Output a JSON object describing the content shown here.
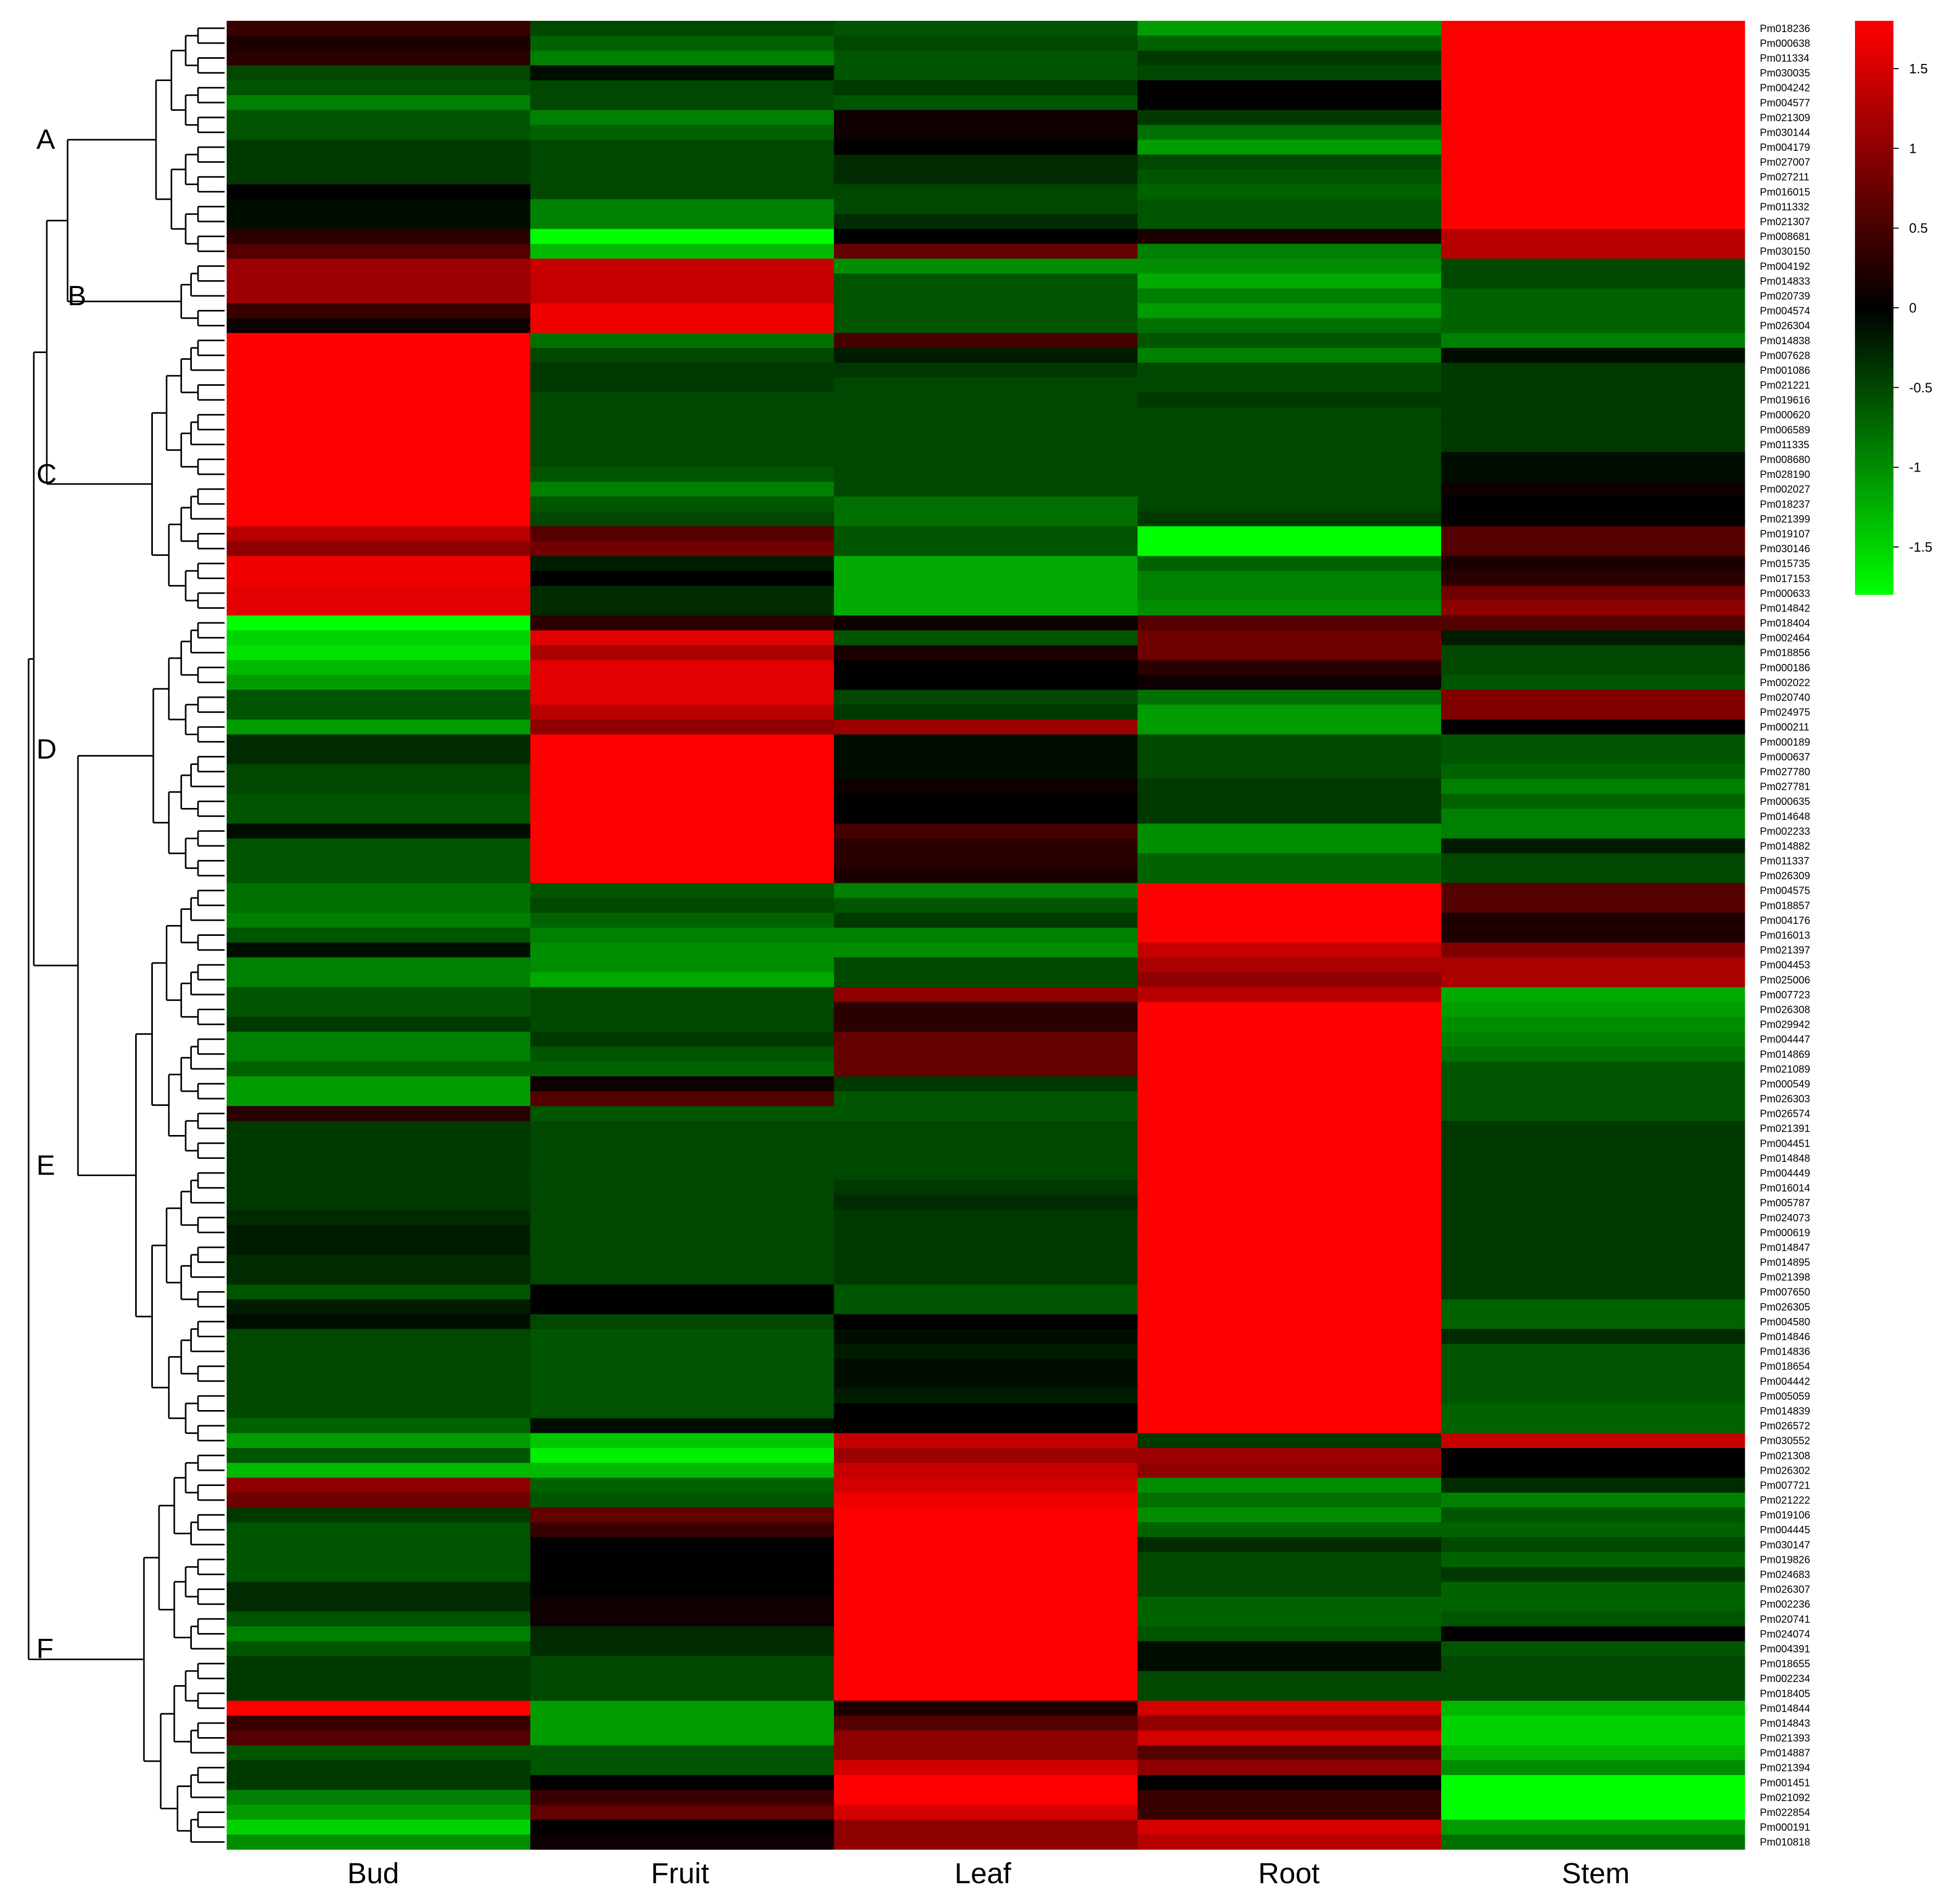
{
  "chart_data": {
    "type": "heatmap",
    "title": "",
    "columns": [
      "Bud",
      "Fruit",
      "Leaf",
      "Root",
      "Stem"
    ],
    "colorbar": {
      "min": -1.8,
      "max": 1.8,
      "ticks": [
        1.5,
        1,
        0.5,
        0,
        -0.5,
        -1,
        -1.5
      ],
      "low_color": "#00ff00",
      "mid_color": "#000000",
      "high_color": "#ff0000"
    },
    "clusters": [
      {
        "label": "A",
        "start": 0,
        "end": 15
      },
      {
        "label": "B",
        "start": 16,
        "end": 20
      },
      {
        "label": "C",
        "start": 21,
        "end": 39
      },
      {
        "label": "D",
        "start": 40,
        "end": 57
      },
      {
        "label": "E",
        "start": 58,
        "end": 95
      },
      {
        "label": "F",
        "start": 96,
        "end": 122
      }
    ],
    "rows": [
      {
        "gene": "Pm018236",
        "values": [
          0.4,
          -0.5,
          -0.6,
          -1.1,
          1.8
        ]
      },
      {
        "gene": "Pm000638",
        "values": [
          0.2,
          -0.7,
          -0.5,
          -0.7,
          1.8
        ]
      },
      {
        "gene": "Pm011334",
        "values": [
          0.3,
          -0.9,
          -0.6,
          -0.4,
          1.8
        ]
      },
      {
        "gene": "Pm030035",
        "values": [
          -0.5,
          -0.1,
          -0.6,
          -0.5,
          1.8
        ]
      },
      {
        "gene": "Pm004242",
        "values": [
          -0.6,
          -0.5,
          -0.4,
          0.0,
          1.8
        ]
      },
      {
        "gene": "Pm004577",
        "values": [
          -0.9,
          -0.5,
          -0.6,
          0.0,
          1.8
        ]
      },
      {
        "gene": "Pm021309",
        "values": [
          -0.6,
          -0.9,
          0.1,
          -0.4,
          1.8
        ]
      },
      {
        "gene": "Pm030144",
        "values": [
          -0.6,
          -0.7,
          0.1,
          -0.8,
          1.8
        ]
      },
      {
        "gene": "Pm004179",
        "values": [
          -0.4,
          -0.5,
          0.0,
          -1.1,
          1.8
        ]
      },
      {
        "gene": "Pm027007",
        "values": [
          -0.4,
          -0.5,
          -0.3,
          -0.5,
          1.8
        ]
      },
      {
        "gene": "Pm027211",
        "values": [
          -0.4,
          -0.5,
          -0.3,
          -0.6,
          1.8
        ]
      },
      {
        "gene": "Pm016015",
        "values": [
          0.0,
          -0.5,
          -0.5,
          -0.7,
          1.8
        ]
      },
      {
        "gene": "Pm011332",
        "values": [
          -0.1,
          -0.9,
          -0.5,
          -0.6,
          1.8
        ]
      },
      {
        "gene": "Pm021307",
        "values": [
          -0.1,
          -0.9,
          -0.3,
          -0.6,
          1.8
        ]
      },
      {
        "gene": "Pm008681",
        "values": [
          0.3,
          -1.8,
          0.0,
          0.2,
          1.3
        ]
      },
      {
        "gene": "Pm030150",
        "values": [
          0.6,
          -1.3,
          0.7,
          -0.9,
          1.3
        ]
      },
      {
        "gene": "Pm004192",
        "values": [
          1.1,
          1.4,
          -1.0,
          -1.0,
          -0.5
        ]
      },
      {
        "gene": "Pm014833",
        "values": [
          1.1,
          1.4,
          -0.6,
          -1.2,
          -0.5
        ]
      },
      {
        "gene": "Pm020739",
        "values": [
          1.1,
          1.4,
          -0.6,
          -0.9,
          -0.7
        ]
      },
      {
        "gene": "Pm004574",
        "values": [
          0.4,
          1.7,
          -0.6,
          -1.1,
          -0.7
        ]
      },
      {
        "gene": "Pm026304",
        "values": [
          0.1,
          1.7,
          -0.6,
          -0.8,
          -0.7
        ]
      },
      {
        "gene": "Pm014838",
        "values": [
          1.8,
          -0.8,
          0.5,
          -0.6,
          -0.9
        ]
      },
      {
        "gene": "Pm007628",
        "values": [
          1.8,
          -0.5,
          -0.2,
          -0.9,
          -0.1
        ]
      },
      {
        "gene": "Pm001086",
        "values": [
          1.8,
          -0.4,
          -0.4,
          -0.5,
          -0.4
        ]
      },
      {
        "gene": "Pm021221",
        "values": [
          1.8,
          -0.4,
          -0.5,
          -0.5,
          -0.4
        ]
      },
      {
        "gene": "Pm019616",
        "values": [
          1.8,
          -0.5,
          -0.5,
          -0.4,
          -0.4
        ]
      },
      {
        "gene": "Pm000620",
        "values": [
          1.8,
          -0.5,
          -0.5,
          -0.5,
          -0.4
        ]
      },
      {
        "gene": "Pm006589",
        "values": [
          1.8,
          -0.5,
          -0.5,
          -0.5,
          -0.4
        ]
      },
      {
        "gene": "Pm011335",
        "values": [
          1.8,
          -0.5,
          -0.5,
          -0.5,
          -0.4
        ]
      },
      {
        "gene": "Pm008680",
        "values": [
          1.8,
          -0.5,
          -0.5,
          -0.5,
          -0.1
        ]
      },
      {
        "gene": "Pm028190",
        "values": [
          1.8,
          -0.6,
          -0.5,
          -0.5,
          -0.1
        ]
      },
      {
        "gene": "Pm002027",
        "values": [
          1.8,
          -0.9,
          -0.5,
          -0.5,
          0.1
        ]
      },
      {
        "gene": "Pm018237",
        "values": [
          1.8,
          -0.6,
          -0.8,
          -0.5,
          0.0
        ]
      },
      {
        "gene": "Pm021399",
        "values": [
          1.8,
          -0.5,
          -0.8,
          -0.4,
          0.0
        ]
      },
      {
        "gene": "Pm019107",
        "values": [
          1.3,
          0.6,
          -0.6,
          -1.8,
          0.6
        ]
      },
      {
        "gene": "Pm030146",
        "values": [
          1.0,
          0.8,
          -0.6,
          -1.8,
          0.6
        ]
      },
      {
        "gene": "Pm015735",
        "values": [
          1.7,
          -0.2,
          -1.2,
          -0.7,
          0.2
        ]
      },
      {
        "gene": "Pm017153",
        "values": [
          1.7,
          0.0,
          -1.2,
          -0.9,
          0.3
        ]
      },
      {
        "gene": "Pm000633",
        "values": [
          1.6,
          -0.3,
          -1.2,
          -0.9,
          0.8
        ]
      },
      {
        "gene": "Pm014842",
        "values": [
          1.6,
          -0.3,
          -1.2,
          -1.0,
          1.0
        ]
      },
      {
        "gene": "Pm018404",
        "values": [
          -1.8,
          0.3,
          0.1,
          0.6,
          0.6
        ]
      },
      {
        "gene": "Pm002464",
        "values": [
          -1.5,
          1.6,
          -0.6,
          0.8,
          -0.2
        ]
      },
      {
        "gene": "Pm018856",
        "values": [
          -1.6,
          1.2,
          0.2,
          0.8,
          -0.5
        ]
      },
      {
        "gene": "Pm000186",
        "values": [
          -1.3,
          1.6,
          0.0,
          0.3,
          -0.5
        ]
      },
      {
        "gene": "Pm002022",
        "values": [
          -1.1,
          1.6,
          0.0,
          0.1,
          -0.6
        ]
      },
      {
        "gene": "Pm020740",
        "values": [
          -0.6,
          1.6,
          -0.5,
          -0.8,
          0.9
        ]
      },
      {
        "gene": "Pm024975",
        "values": [
          -0.6,
          1.3,
          -0.4,
          -1.1,
          0.9
        ]
      },
      {
        "gene": "Pm000211",
        "values": [
          -1.1,
          1.0,
          1.1,
          -1.1,
          0.0
        ]
      },
      {
        "gene": "Pm000189",
        "values": [
          -0.3,
          1.8,
          -0.1,
          -0.5,
          -0.6
        ]
      },
      {
        "gene": "Pm000637",
        "values": [
          -0.3,
          1.8,
          -0.1,
          -0.5,
          -0.6
        ]
      },
      {
        "gene": "Pm027780",
        "values": [
          -0.5,
          1.8,
          -0.1,
          -0.5,
          -0.7
        ]
      },
      {
        "gene": "Pm027781",
        "values": [
          -0.5,
          1.8,
          0.1,
          -0.4,
          -0.9
        ]
      },
      {
        "gene": "Pm000635",
        "values": [
          -0.6,
          1.8,
          0.0,
          -0.4,
          -0.7
        ]
      },
      {
        "gene": "Pm014648",
        "values": [
          -0.6,
          1.8,
          0.0,
          -0.4,
          -0.9
        ]
      },
      {
        "gene": "Pm002233",
        "values": [
          -0.1,
          1.8,
          0.5,
          -1.0,
          -0.9
        ]
      },
      {
        "gene": "Pm014882",
        "values": [
          -0.6,
          1.8,
          0.3,
          -1.0,
          -0.2
        ]
      },
      {
        "gene": "Pm011337",
        "values": [
          -0.6,
          1.8,
          0.3,
          -0.7,
          -0.5
        ]
      },
      {
        "gene": "Pm026309",
        "values": [
          -0.6,
          1.8,
          0.2,
          -0.7,
          -0.5
        ]
      },
      {
        "gene": "Pm004575",
        "values": [
          -0.8,
          -0.6,
          -0.9,
          1.8,
          0.6
        ]
      },
      {
        "gene": "Pm018857",
        "values": [
          -0.8,
          -0.5,
          -0.6,
          1.8,
          0.6
        ]
      },
      {
        "gene": "Pm004176",
        "values": [
          -0.9,
          -0.7,
          -0.4,
          1.8,
          0.2
        ]
      },
      {
        "gene": "Pm016013",
        "values": [
          -0.6,
          -0.9,
          -0.9,
          1.8,
          0.2
        ]
      },
      {
        "gene": "Pm021397",
        "values": [
          -0.1,
          -1.0,
          -1.0,
          1.4,
          0.9
        ]
      },
      {
        "gene": "Pm004453",
        "values": [
          -0.9,
          -1.0,
          -0.5,
          1.2,
          1.2
        ]
      },
      {
        "gene": "Pm025006",
        "values": [
          -0.9,
          -1.2,
          -0.5,
          1.0,
          1.2
        ]
      },
      {
        "gene": "Pm007723",
        "values": [
          -0.6,
          -0.5,
          1.0,
          1.3,
          -1.2
        ]
      },
      {
        "gene": "Pm026308",
        "values": [
          -0.6,
          -0.5,
          0.3,
          1.8,
          -1.1
        ]
      },
      {
        "gene": "Pm029942",
        "values": [
          -0.4,
          -0.5,
          0.3,
          1.8,
          -1.0
        ]
      },
      {
        "gene": "Pm004447",
        "values": [
          -0.9,
          -0.4,
          0.7,
          1.8,
          -0.9
        ]
      },
      {
        "gene": "Pm014869",
        "values": [
          -0.9,
          -0.6,
          0.7,
          1.8,
          -0.8
        ]
      },
      {
        "gene": "Pm021089",
        "values": [
          -0.7,
          -0.7,
          0.7,
          1.8,
          -0.6
        ]
      },
      {
        "gene": "Pm000549",
        "values": [
          -1.1,
          0.1,
          -0.4,
          1.8,
          -0.6
        ]
      },
      {
        "gene": "Pm026303",
        "values": [
          -1.1,
          0.6,
          -0.6,
          1.8,
          -0.6
        ]
      },
      {
        "gene": "Pm026574",
        "values": [
          0.3,
          -0.6,
          -0.6,
          1.8,
          -0.6
        ]
      },
      {
        "gene": "Pm021391",
        "values": [
          -0.4,
          -0.5,
          -0.5,
          1.8,
          -0.4
        ]
      },
      {
        "gene": "Pm004451",
        "values": [
          -0.4,
          -0.5,
          -0.5,
          1.8,
          -0.4
        ]
      },
      {
        "gene": "Pm014848",
        "values": [
          -0.4,
          -0.5,
          -0.5,
          1.8,
          -0.4
        ]
      },
      {
        "gene": "Pm004449",
        "values": [
          -0.4,
          -0.5,
          -0.5,
          1.8,
          -0.4
        ]
      },
      {
        "gene": "Pm016014",
        "values": [
          -0.4,
          -0.5,
          -0.4,
          1.8,
          -0.4
        ]
      },
      {
        "gene": "Pm005787",
        "values": [
          -0.4,
          -0.5,
          -0.3,
          1.8,
          -0.4
        ]
      },
      {
        "gene": "Pm024073",
        "values": [
          -0.3,
          -0.5,
          -0.4,
          1.8,
          -0.4
        ]
      },
      {
        "gene": "Pm000619",
        "values": [
          -0.2,
          -0.5,
          -0.4,
          1.8,
          -0.4
        ]
      },
      {
        "gene": "Pm014847",
        "values": [
          -0.2,
          -0.5,
          -0.4,
          1.8,
          -0.4
        ]
      },
      {
        "gene": "Pm014895",
        "values": [
          -0.3,
          -0.5,
          -0.4,
          1.8,
          -0.4
        ]
      },
      {
        "gene": "Pm021398",
        "values": [
          -0.3,
          -0.5,
          -0.4,
          1.8,
          -0.4
        ]
      },
      {
        "gene": "Pm007650",
        "values": [
          -0.6,
          0.0,
          -0.6,
          1.8,
          -0.4
        ]
      },
      {
        "gene": "Pm026305",
        "values": [
          -0.2,
          0.0,
          -0.6,
          1.8,
          -0.7
        ]
      },
      {
        "gene": "Pm004580",
        "values": [
          -0.1,
          -0.5,
          0.0,
          1.8,
          -0.7
        ]
      },
      {
        "gene": "Pm014846",
        "values": [
          -0.5,
          -0.6,
          -0.1,
          1.8,
          -0.3
        ]
      },
      {
        "gene": "Pm014836",
        "values": [
          -0.5,
          -0.6,
          -0.2,
          1.8,
          -0.6
        ]
      },
      {
        "gene": "Pm018654",
        "values": [
          -0.5,
          -0.6,
          -0.1,
          1.8,
          -0.6
        ]
      },
      {
        "gene": "Pm004442",
        "values": [
          -0.5,
          -0.6,
          -0.1,
          1.8,
          -0.6
        ]
      },
      {
        "gene": "Pm005059",
        "values": [
          -0.5,
          -0.6,
          -0.2,
          1.8,
          -0.6
        ]
      },
      {
        "gene": "Pm014839",
        "values": [
          -0.5,
          -0.6,
          0.0,
          1.8,
          -0.7
        ]
      },
      {
        "gene": "Pm026572",
        "values": [
          -0.7,
          -0.1,
          0.0,
          1.8,
          -0.7
        ]
      },
      {
        "gene": "Pm030552",
        "values": [
          -1.1,
          -1.4,
          1.4,
          -0.4,
          1.4
        ]
      },
      {
        "gene": "Pm021308",
        "values": [
          -0.6,
          -1.7,
          1.1,
          1.1,
          0.0
        ]
      },
      {
        "gene": "Pm026302",
        "values": [
          -1.3,
          -1.3,
          1.4,
          1.0,
          0.0
        ]
      },
      {
        "gene": "Pm007721",
        "values": [
          1.0,
          -0.7,
          1.5,
          -1.0,
          -0.3
        ]
      },
      {
        "gene": "Pm021222",
        "values": [
          0.8,
          -0.6,
          1.7,
          -0.8,
          -0.9
        ]
      },
      {
        "gene": "Pm019106",
        "values": [
          -0.4,
          0.7,
          1.8,
          -1.0,
          -0.6
        ]
      },
      {
        "gene": "Pm004445",
        "values": [
          -0.6,
          0.4,
          1.8,
          -0.7,
          -0.7
        ]
      },
      {
        "gene": "Pm030147",
        "values": [
          -0.6,
          0.0,
          1.8,
          -0.3,
          -0.5
        ]
      },
      {
        "gene": "Pm019826",
        "values": [
          -0.6,
          0.0,
          1.8,
          -0.5,
          -0.7
        ]
      },
      {
        "gene": "Pm024683",
        "values": [
          -0.6,
          0.0,
          1.8,
          -0.5,
          -0.4
        ]
      },
      {
        "gene": "Pm026307",
        "values": [
          -0.3,
          0.0,
          1.8,
          -0.5,
          -0.7
        ]
      },
      {
        "gene": "Pm002236",
        "values": [
          -0.3,
          0.1,
          1.8,
          -0.7,
          -0.7
        ]
      },
      {
        "gene": "Pm020741",
        "values": [
          -0.6,
          0.1,
          1.8,
          -0.7,
          -0.6
        ]
      },
      {
        "gene": "Pm024074",
        "values": [
          -0.9,
          -0.3,
          1.8,
          -0.6,
          0.0
        ]
      },
      {
        "gene": "Pm004391",
        "values": [
          -0.6,
          -0.3,
          1.8,
          -0.1,
          -0.6
        ]
      },
      {
        "gene": "Pm018655",
        "values": [
          -0.4,
          -0.5,
          1.8,
          -0.1,
          -0.5
        ]
      },
      {
        "gene": "Pm002234",
        "values": [
          -0.4,
          -0.5,
          1.8,
          -0.5,
          -0.5
        ]
      },
      {
        "gene": "Pm018405",
        "values": [
          -0.4,
          -0.5,
          1.8,
          -0.5,
          -0.5
        ]
      },
      {
        "gene": "Pm014844",
        "values": [
          1.8,
          -1.1,
          0.2,
          1.5,
          -1.3
        ]
      },
      {
        "gene": "Pm014843",
        "values": [
          0.4,
          -1.1,
          0.6,
          1.0,
          -1.5
        ]
      },
      {
        "gene": "Pm021393",
        "values": [
          0.6,
          -1.1,
          1.0,
          1.5,
          -1.5
        ]
      },
      {
        "gene": "Pm014887",
        "values": [
          -0.6,
          -0.6,
          1.0,
          0.6,
          -1.3
        ]
      },
      {
        "gene": "Pm021394",
        "values": [
          -0.4,
          -0.6,
          1.5,
          1.0,
          -1.0
        ]
      },
      {
        "gene": "Pm001451",
        "values": [
          -0.4,
          0.0,
          1.8,
          0.0,
          -1.8
        ]
      },
      {
        "gene": "Pm021092",
        "values": [
          -0.9,
          0.4,
          1.8,
          0.4,
          -1.8
        ]
      },
      {
        "gene": "Pm022854",
        "values": [
          -1.1,
          0.7,
          1.5,
          0.4,
          -1.8
        ]
      },
      {
        "gene": "Pm000191",
        "values": [
          -1.5,
          0.0,
          1.0,
          1.5,
          -1.1
        ]
      },
      {
        "gene": "Pm010818",
        "values": [
          -1.0,
          0.1,
          1.0,
          1.3,
          -0.8
        ]
      }
    ]
  }
}
